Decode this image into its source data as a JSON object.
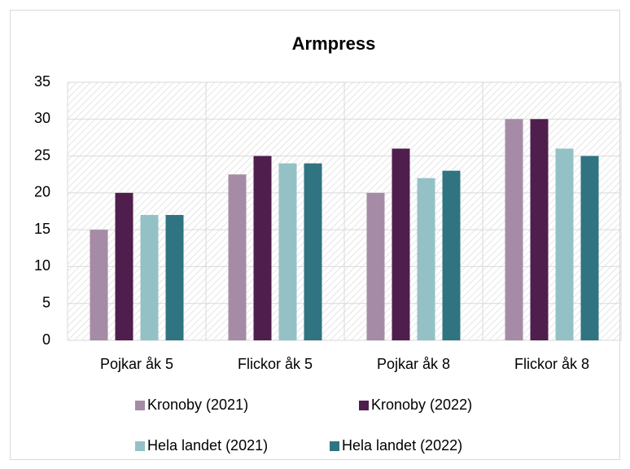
{
  "chart_data": {
    "type": "bar",
    "title": "Armpress",
    "categories": [
      "Pojkar åk 5",
      "Flickor åk 5",
      "Pojkar åk 8",
      "Flickor åk 8"
    ],
    "series": [
      {
        "name": "Kronoby (2021)",
        "color": "#a68ba6",
        "values": [
          15,
          22.5,
          20,
          30
        ]
      },
      {
        "name": "Kronoby (2022)",
        "color": "#4f1e4d",
        "values": [
          20,
          25,
          26,
          30
        ]
      },
      {
        "name": "Hela landet (2021)",
        "color": "#94c1c5",
        "values": [
          17,
          24,
          22,
          26
        ]
      },
      {
        "name": "Hela landet (2022)",
        "color": "#2f7480",
        "values": [
          17,
          24,
          23,
          25
        ]
      }
    ],
    "ylim": [
      0,
      35
    ],
    "yticks": [
      0,
      5,
      10,
      15,
      20,
      25,
      30,
      35
    ],
    "grid": true,
    "legend": "bottom"
  }
}
